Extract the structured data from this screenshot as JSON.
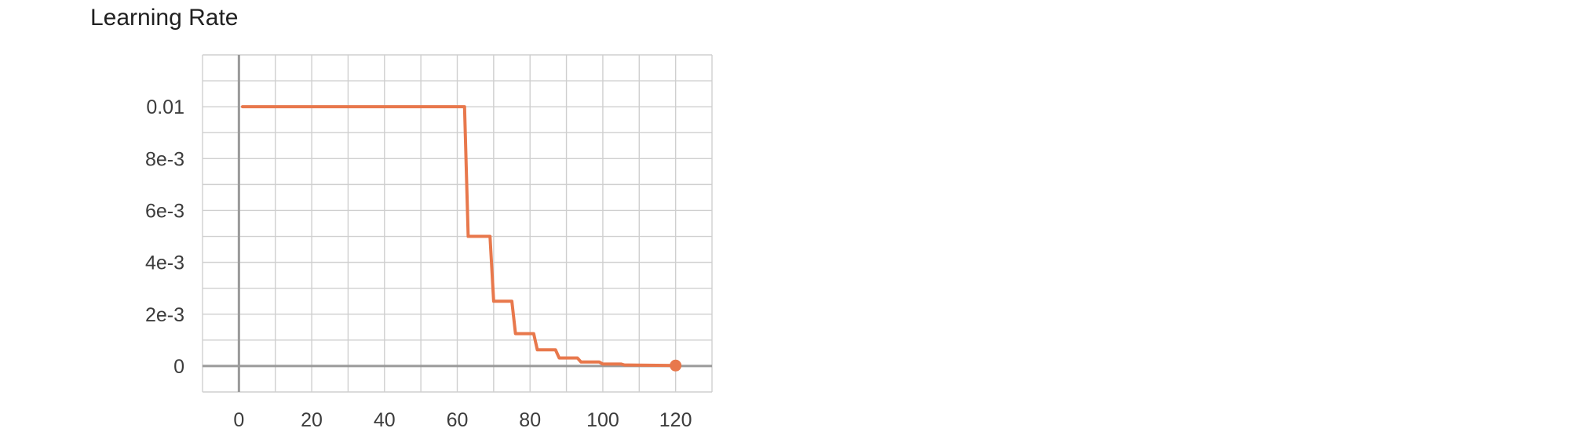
{
  "chart_data": {
    "type": "line",
    "title": "Learning Rate",
    "xlabel": "",
    "ylabel": "",
    "xlim": [
      -10,
      130
    ],
    "ylim": [
      -0.001,
      0.012
    ],
    "x_ticks": [
      0,
      20,
      40,
      60,
      80,
      100,
      120
    ],
    "x_tick_labels": [
      "0",
      "20",
      "40",
      "60",
      "80",
      "100",
      "120"
    ],
    "y_ticks": [
      0,
      0.002,
      0.004,
      0.006,
      0.008,
      0.01
    ],
    "y_tick_labels": [
      "0",
      "2e-3",
      "4e-3",
      "6e-3",
      "8e-3",
      "0.01"
    ],
    "grid": true,
    "series": [
      {
        "color": "#e8784c",
        "x": [
          1,
          62,
          63,
          64,
          69,
          70,
          71,
          75,
          76,
          77,
          81,
          82,
          83,
          87,
          88,
          89,
          93,
          94,
          95,
          99,
          100,
          101,
          105,
          106,
          107,
          120
        ],
        "y": [
          0.01,
          0.01,
          0.005,
          0.005,
          0.005,
          0.0025,
          0.0025,
          0.0025,
          0.00125,
          0.00125,
          0.00125,
          0.000625,
          0.000625,
          0.000625,
          0.0003125,
          0.0003125,
          0.0003125,
          0.00015625,
          0.00015625,
          0.00015625,
          7.8e-05,
          7.8e-05,
          7.8e-05,
          3.9e-05,
          3.9e-05,
          2e-05
        ],
        "last_point_marker": true
      }
    ]
  }
}
